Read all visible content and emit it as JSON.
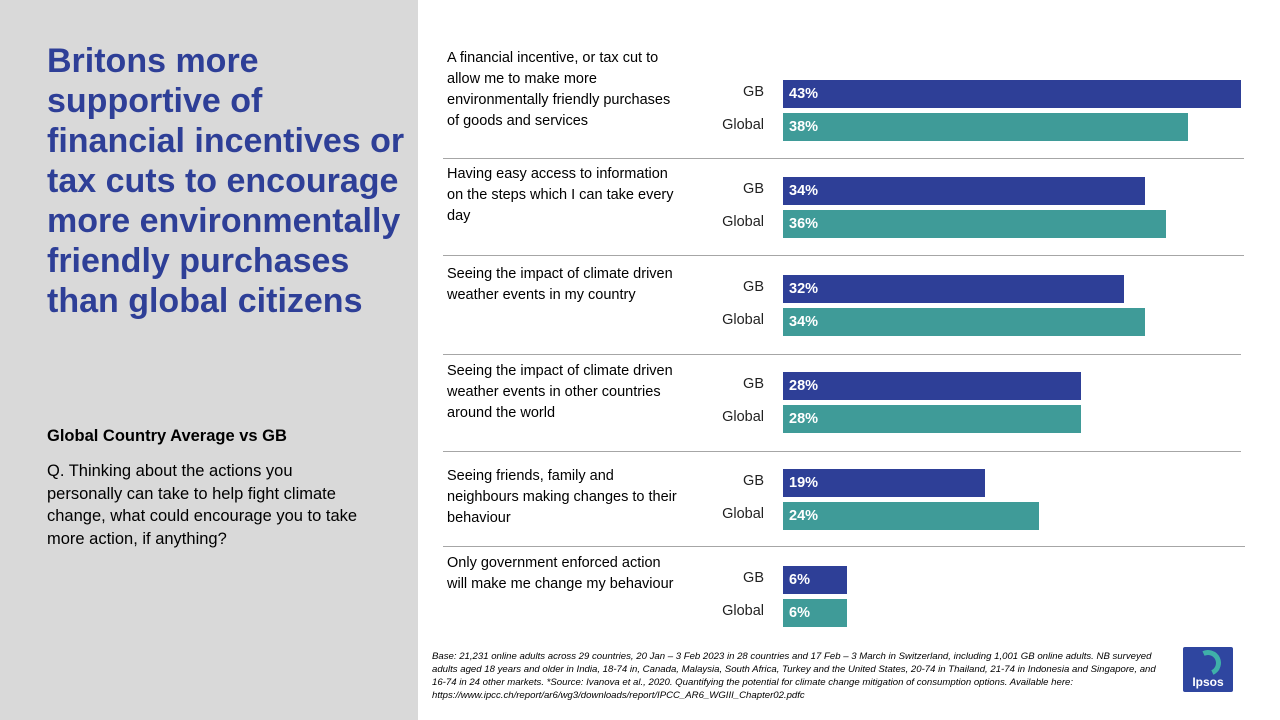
{
  "headline": "Britons more supportive of financial incentives or tax cuts to encourage more environmentally friendly purchases than global citizens",
  "subtitle": "Global Country Average vs GB",
  "question": "Q. Thinking about the actions you personally can take to help fight climate change, what could encourage you to take more action, if anything?",
  "footnote": "Base: 21,231 online adults across 29 countries, 20 Jan – 3 Feb 2023 in 28 countries and 17 Feb – 3 March in Switzerland, including 1,001 GB online adults. NB surveyed adults aged 18 years and older in India, 18-74 in, Canada, Malaysia, South Africa, Turkey and the United States, 20-74 in Thailand, 21-74 in Indonesia and Singapore, and 16-74 in 24 other markets. *Source: Ivanova et al., 2020. Quantifying the potential for climate change mitigation of consumption options. Available here: https://www.ipcc.ch/report/ar6/wg3/downloads/report/IPCC_AR6_WGIII_Chapter02.pdfc",
  "logo_text": "Ipsos",
  "chart_data": {
    "type": "bar",
    "orientation": "horizontal",
    "title": "",
    "unit": "%",
    "xlim": [
      0,
      43
    ],
    "categories": [
      "A financial incentive, or tax cut to allow me to make more environmentally  friendly purchases of goods and services",
      "Having easy access to information on the steps which I can take every day",
      "Seeing the impact of climate driven weather events in my country",
      "Seeing the impact of climate driven weather events in other countries around the world",
      "Seeing friends, family and neighbours making changes to their behaviour",
      "Only government enforced action will make me change my behaviour"
    ],
    "series": [
      {
        "name": "GB",
        "color": "#2e3f97",
        "values": [
          43,
          34,
          32,
          28,
          19,
          6
        ],
        "labels": [
          "43%",
          "34%",
          "32%",
          "28%",
          "19%",
          "6%"
        ]
      },
      {
        "name": "Global",
        "color": "#3f9b98",
        "values": [
          38,
          36,
          34,
          28,
          24,
          6
        ],
        "labels": [
          "38%",
          "36%",
          "34%",
          "28%",
          "24%",
          "6%"
        ]
      }
    ]
  }
}
